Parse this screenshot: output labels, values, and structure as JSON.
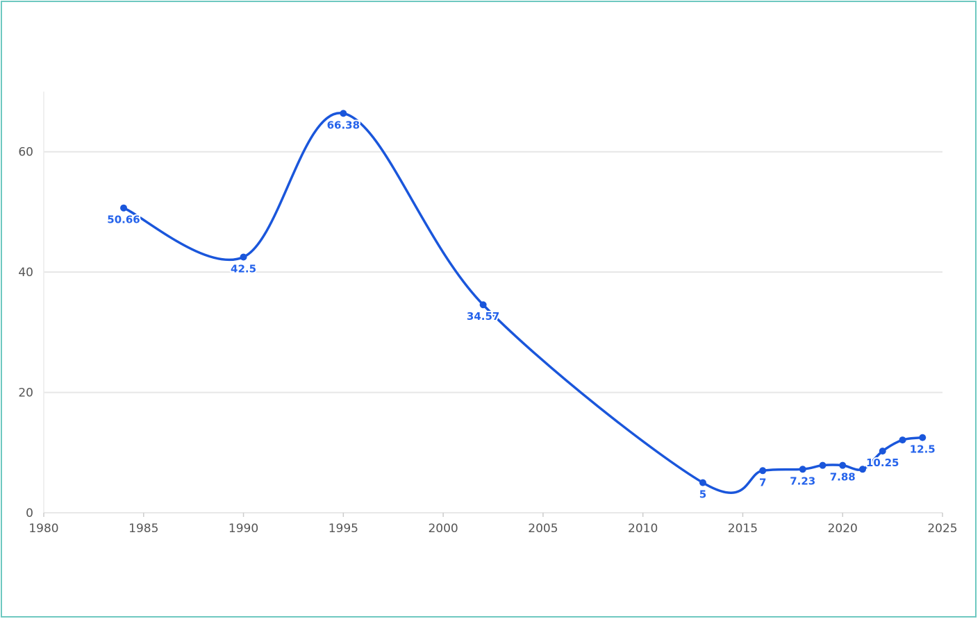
{
  "chart_data": {
    "type": "line",
    "title": "",
    "xlabel": "",
    "ylabel": "",
    "x": [
      1984,
      1990,
      1995,
      2002,
      2013,
      2016,
      2018,
      2019,
      2020,
      2021,
      2022,
      2023,
      2024
    ],
    "series": [
      {
        "values": [
          50.66,
          42.5,
          66.38,
          34.57,
          5,
          7,
          7.23,
          7.88,
          7.88,
          7.23,
          10.25,
          12.1,
          12.5
        ],
        "labels": [
          "50.66",
          "42.5",
          "66.38",
          "34.57",
          "5",
          "7",
          "7.23",
          "",
          "7.88",
          "",
          "10.25",
          "",
          "12.5"
        ],
        "color": "#1a56db"
      }
    ],
    "xlim": [
      1980,
      2025
    ],
    "ylim": [
      0,
      70
    ],
    "x_ticks": [
      "1980",
      "1985",
      "1990",
      "1995",
      "2000",
      "2005",
      "2010",
      "2015",
      "2020",
      "2025"
    ],
    "y_ticks": [
      "0",
      "20",
      "40",
      "60"
    ],
    "grid": true,
    "smooth": true
  }
}
